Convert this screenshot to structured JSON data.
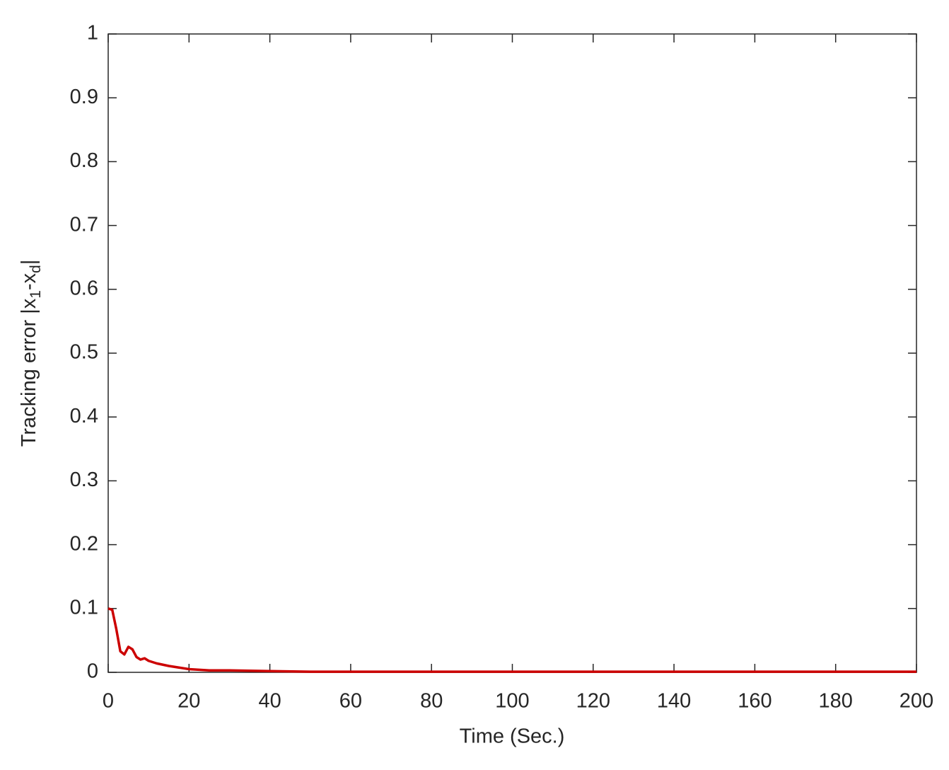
{
  "chart_data": {
    "type": "line",
    "xlabel": "Time (Sec.)",
    "ylabel": [
      "Tracking error |x",
      "1",
      "-x",
      "d",
      "|"
    ],
    "x": [
      0,
      1,
      2,
      3,
      4,
      5,
      6,
      7,
      8,
      9,
      10,
      12,
      15,
      20,
      25,
      30,
      40,
      50,
      60,
      80,
      100,
      120,
      140,
      160,
      180,
      200
    ],
    "series": [
      {
        "color": "#cc0000",
        "values": [
          0.1,
          0.098,
          0.068,
          0.033,
          0.028,
          0.04,
          0.036,
          0.024,
          0.02,
          0.022,
          0.018,
          0.014,
          0.01,
          0.005,
          0.003,
          0.003,
          0.002,
          0.001,
          0.001,
          0.001,
          0.001,
          0.001,
          0.001,
          0.001,
          0.001,
          0.001
        ]
      }
    ],
    "xlim": [
      0,
      200
    ],
    "xticks": [
      0,
      20,
      40,
      60,
      80,
      100,
      120,
      140,
      160,
      180,
      200
    ],
    "ylim": [
      0,
      1
    ],
    "yticks": [
      0,
      0.1,
      0.2,
      0.3,
      0.4,
      0.5,
      0.6,
      0.7,
      0.8,
      0.9,
      1
    ],
    "grid": false
  }
}
